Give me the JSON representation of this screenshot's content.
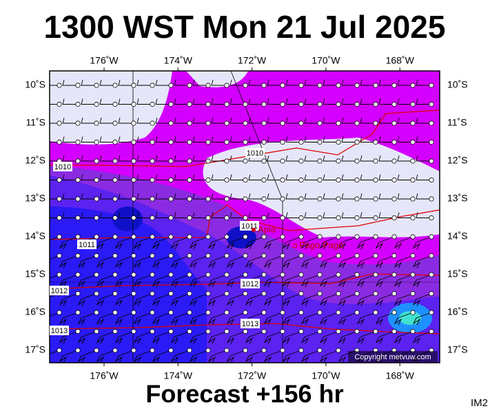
{
  "title": "1300 WST Mon 21 Jul 2025",
  "subtitle": "Forecast +156 hr",
  "corner_label": "IM2",
  "map": {
    "lon_labels": [
      "176˚W",
      "174˚W",
      "172˚W",
      "170˚W",
      "168˚W"
    ],
    "lat_labels": [
      "10˚S",
      "11˚S",
      "12˚S",
      "13˚S",
      "14˚S",
      "15˚S",
      "16˚S",
      "17˚S"
    ],
    "isobar_labels": [
      "1010",
      "1010",
      "1011",
      "1011",
      "1012",
      "1012",
      "1013",
      "1013"
    ],
    "places": [
      "Apia",
      "Pago Pago"
    ],
    "copyright": "Copyright metvuw.com"
  }
}
